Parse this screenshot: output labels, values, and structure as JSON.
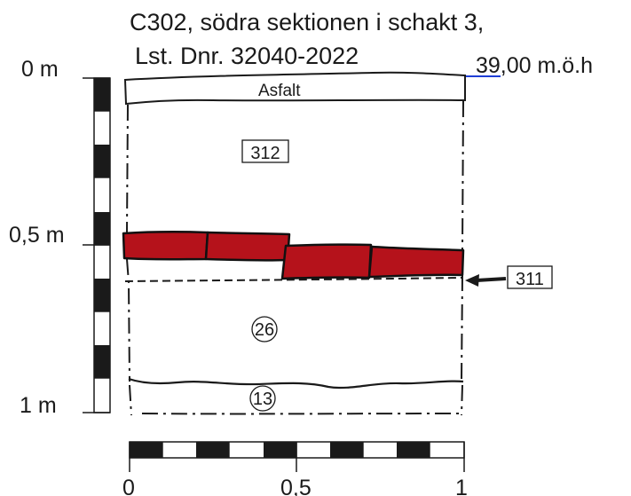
{
  "title": {
    "line1": "C302, södra sektionen i schakt 3,",
    "line2": "Lst. Dnr. 32040-2022"
  },
  "elevation": "39,00 m.ö.h",
  "vertical_scale": [
    "0 m",
    "0,5 m",
    "1 m"
  ],
  "horizontal_scale": [
    "0",
    "0,5",
    "1"
  ],
  "layers": {
    "asphalt": "Asfalt",
    "fill_312": "312",
    "brick_311": "311",
    "layer_26": "26",
    "layer_13": "13"
  },
  "colors": {
    "brick": "#b5121b",
    "line": "#1a1a1a",
    "elevation_marker": "#1f3fd6"
  }
}
